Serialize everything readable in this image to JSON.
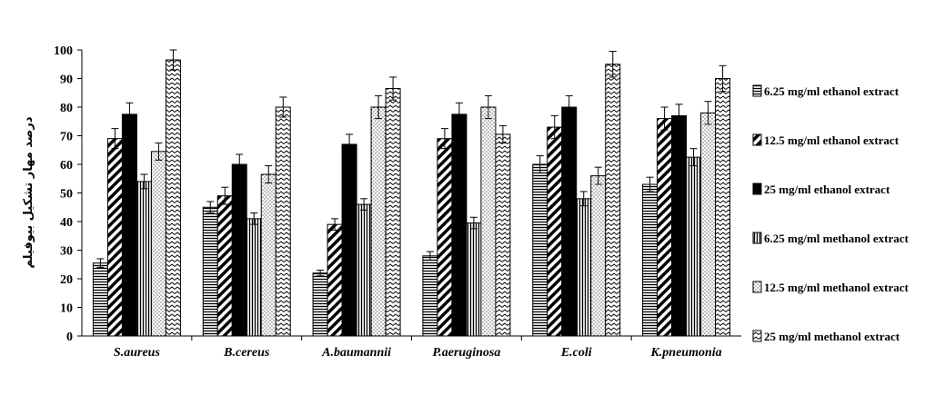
{
  "chart_data": {
    "type": "bar",
    "ylabel": "درصد مهار تشکیل بیوفیلم",
    "ylim": [
      0,
      100
    ],
    "yticks": [
      0,
      10,
      20,
      30,
      40,
      50,
      60,
      70,
      80,
      90,
      100
    ],
    "grid": false,
    "legend_position": "right",
    "categories": [
      "S.aureus",
      "B.cereus",
      "A.baumannii",
      "P.aeruginosa",
      "E.coli",
      "K.pneumonia"
    ],
    "series": [
      {
        "name": "6.25  mg/ml ethanol extract",
        "pattern": "hlines",
        "values": [
          25.5,
          45,
          22,
          28,
          60,
          53
        ],
        "errors": [
          1.5,
          2,
          1,
          1.5,
          3,
          2.5
        ]
      },
      {
        "name": "12.5  mg/ml ethanol extract",
        "pattern": "diag",
        "values": [
          69,
          49,
          39,
          69,
          73,
          76
        ],
        "errors": [
          3.5,
          3,
          2,
          3.5,
          4,
          4
        ]
      },
      {
        "name": "25  mg/ml ethanol extract",
        "pattern": "solid",
        "values": [
          77.5,
          60,
          67,
          77.5,
          80,
          77
        ],
        "errors": [
          4,
          3.5,
          3.5,
          4,
          4,
          4
        ]
      },
      {
        "name": "6.25  mg/ml methanol extract",
        "pattern": "vlines",
        "values": [
          54,
          41,
          46,
          39.5,
          48,
          62.5
        ],
        "errors": [
          2.5,
          2,
          2,
          2,
          2.5,
          3
        ]
      },
      {
        "name": "12.5 mg/ml methanol extract",
        "pattern": "dots",
        "values": [
          64.5,
          56.5,
          80,
          80,
          56,
          78
        ],
        "errors": [
          3,
          3,
          4,
          4,
          3,
          4
        ]
      },
      {
        "name": "25 mg/ml methanol extract",
        "pattern": "zigzag",
        "values": [
          96.5,
          80,
          86.5,
          70.5,
          95,
          90
        ],
        "errors": [
          3.5,
          3.5,
          4,
          3,
          4.5,
          4.5
        ]
      }
    ]
  }
}
